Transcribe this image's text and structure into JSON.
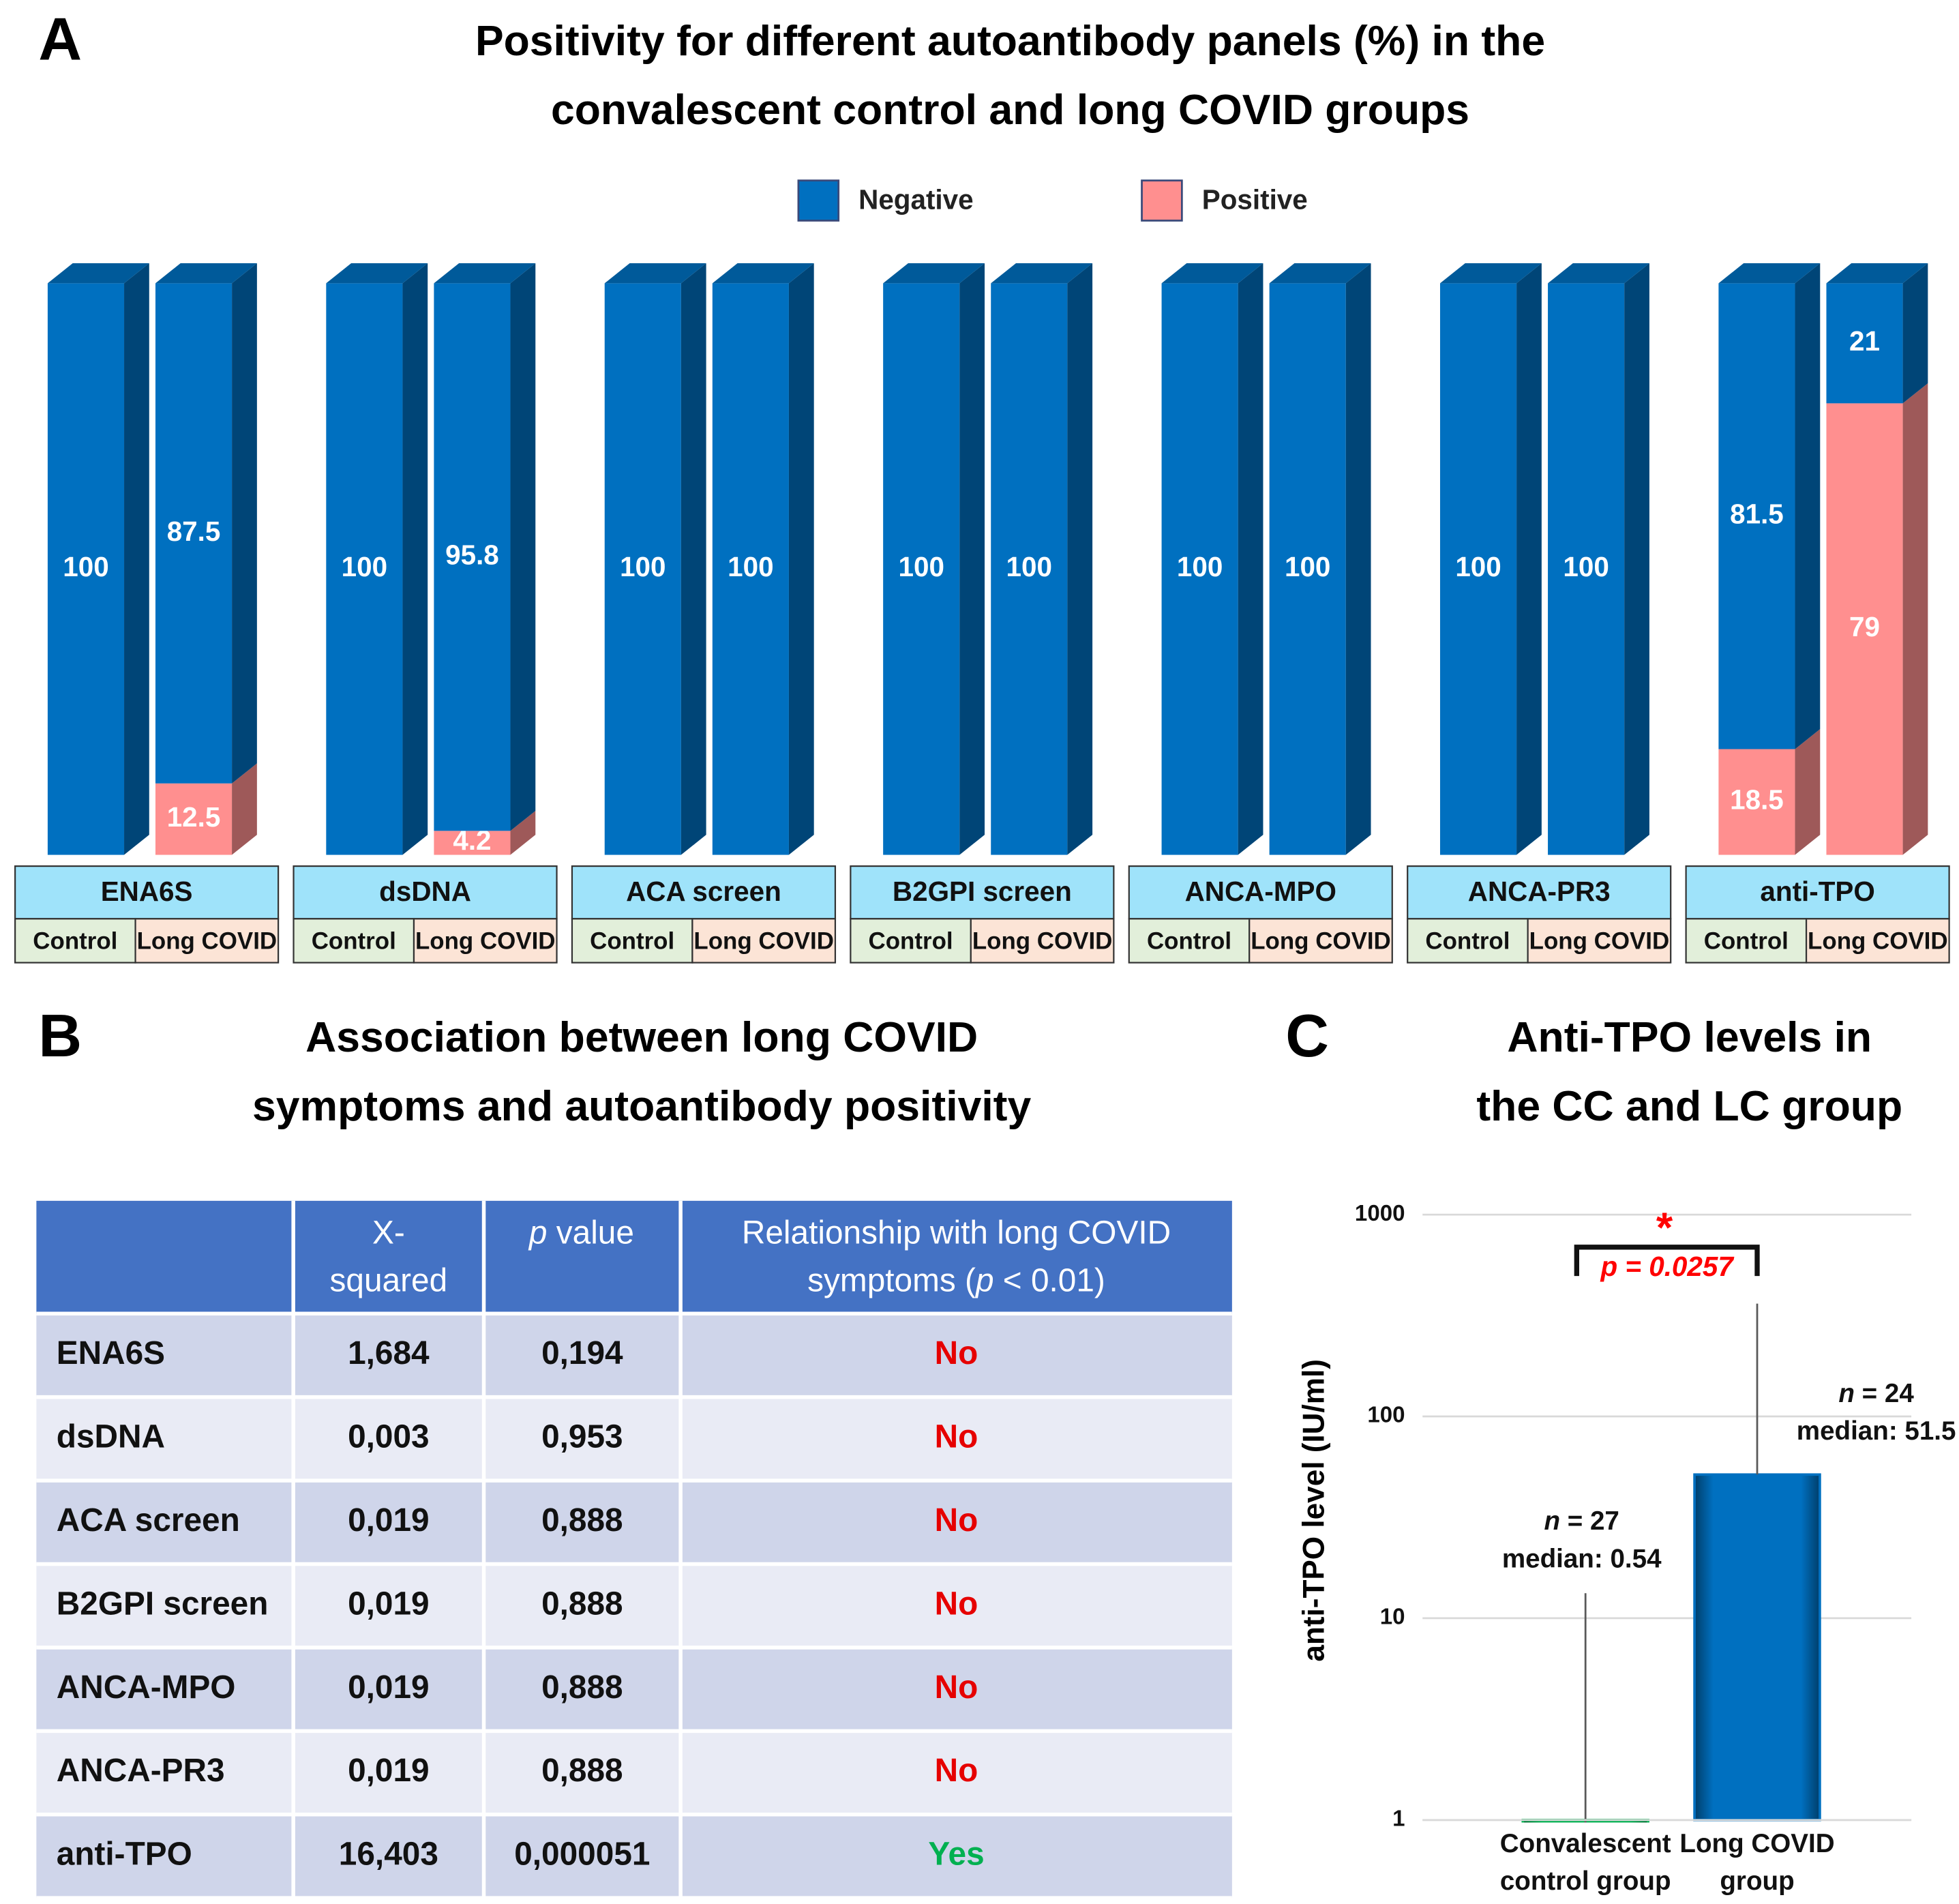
{
  "chart_data": [
    {
      "type": "stacked-bar-3d",
      "panel": "A",
      "title": [
        "Positivity for different autoantibody panels (%) in the",
        "convalescent control and long COVID groups"
      ],
      "categories": [
        "ENA6S",
        "dsDNA",
        "ACA screen",
        "B2GPI screen",
        "ANCA-MPO",
        "ANCA-PR3",
        "anti-TPO"
      ],
      "subcategories": [
        "Control",
        "Long COVID"
      ],
      "subcategory_colors": [
        "#e2efda",
        "#fce4d6"
      ],
      "category_color": "#9fe3fa",
      "ylim": [
        0,
        100
      ],
      "series": [
        {
          "name": "Negative",
          "color": "#0070c0",
          "values": [
            [
              100,
              87.5
            ],
            [
              100,
              95.8
            ],
            [
              100,
              100
            ],
            [
              100,
              100
            ],
            [
              100,
              100
            ],
            [
              100,
              100
            ],
            [
              81.5,
              21
            ]
          ]
        },
        {
          "name": "Positive",
          "color": "#ff8f8f",
          "values": [
            [
              0,
              12.5
            ],
            [
              0,
              4.2
            ],
            [
              0,
              0
            ],
            [
              0,
              0
            ],
            [
              0,
              0
            ],
            [
              0,
              0
            ],
            [
              18.5,
              79
            ]
          ]
        }
      ]
    },
    {
      "type": "bar",
      "panel": "C",
      "title": [
        "Anti-TPO levels in",
        "the CC and LC group"
      ],
      "ylabel": "anti-TPO level (IU/ml)",
      "categories": [
        [
          "Convalescent",
          "control group"
        ],
        [
          "Long COVID",
          "group"
        ]
      ],
      "values": [
        0.54,
        51.5
      ],
      "upper": [
        13.3,
        362
      ],
      "colors": [
        "#00b050",
        "#0070c0"
      ],
      "log_scale": true,
      "grid": true,
      "ylim": [
        1,
        1000
      ],
      "yticks": [
        1,
        10,
        100,
        1000
      ],
      "annotations": [
        [
          "n",
          " = 27",
          "median: 0.54"
        ],
        [
          "n",
          " = 24",
          "median: 51.5"
        ]
      ],
      "significance": {
        "star": "*",
        "label": "p = 0.0257",
        "color": "#ff0000"
      }
    }
  ],
  "table": {
    "panel": "B",
    "title": [
      "Association between long COVID",
      "symptoms and autoantibody positivity"
    ],
    "header": {
      "x_squared": [
        "X-",
        "squared"
      ],
      "p_value": [
        "p",
        " value"
      ],
      "relationship": [
        "Relationship with long COVID",
        "symptoms (",
        "p",
        " < 0.01)"
      ]
    },
    "rows": [
      [
        "ENA6S",
        "1,684",
        "0,194",
        "No"
      ],
      [
        "dsDNA",
        "0,003",
        "0,953",
        "No"
      ],
      [
        "ACA screen",
        "0,019",
        "0,888",
        "No"
      ],
      [
        "B2GPI screen",
        "0,019",
        "0,888",
        "No"
      ],
      [
        "ANCA-MPO",
        "0,019",
        "0,888",
        "No"
      ],
      [
        "ANCA-PR3",
        "0,019",
        "0,888",
        "No"
      ],
      [
        "anti-TPO",
        "16,403",
        "0,000051",
        "Yes"
      ]
    ],
    "answer_colors": {
      "No": "#e60000",
      "Yes": "#00b050"
    }
  }
}
